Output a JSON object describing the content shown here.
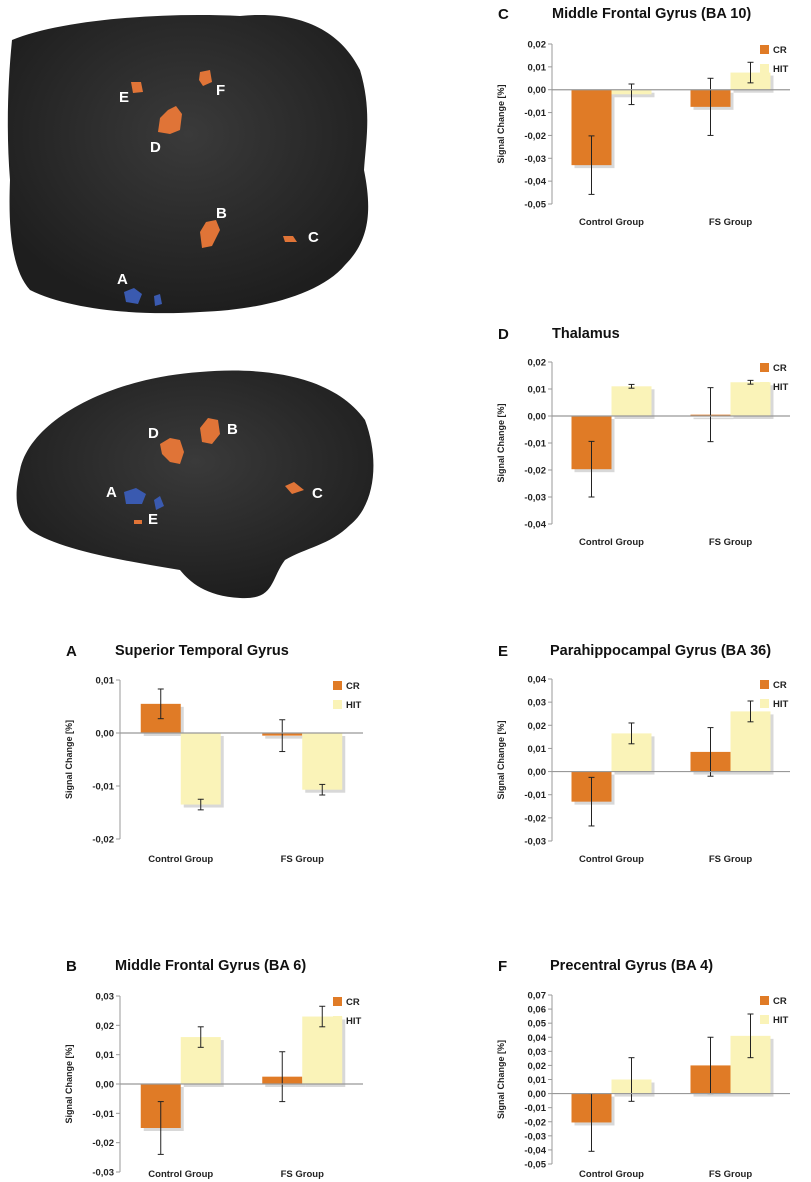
{
  "colors": {
    "cr": "#e07b26",
    "hit": "#faf3b8",
    "brain": "#2e2e2e",
    "active": "#e07437",
    "deactive": "#3a5ab0"
  },
  "brain_labels": {
    "top": [
      "A",
      "B",
      "C",
      "D",
      "E",
      "F"
    ],
    "bottom": [
      "A",
      "B",
      "C",
      "D",
      "E"
    ]
  },
  "chart_data": [
    {
      "panel": "A",
      "type": "bar",
      "title": "Superior Temporal Gyrus",
      "ylabel": "Signal Change [%]",
      "categories": [
        "Control Group",
        "FS Group"
      ],
      "ticks": [
        "0,01",
        "0,00",
        "-0,01",
        "-0,02"
      ],
      "ylim": [
        -0.02,
        0.01
      ],
      "series": [
        {
          "name": "CR",
          "values": [
            0.0055,
            -0.0005
          ],
          "errors": [
            0.0028,
            0.003
          ]
        },
        {
          "name": "HIT",
          "values": [
            -0.0135,
            -0.0107
          ],
          "errors": [
            0.001,
            0.001
          ]
        }
      ]
    },
    {
      "panel": "B",
      "type": "bar",
      "title": "Middle Frontal Gyrus (BA 6)",
      "ylabel": "Signal Change [%]",
      "categories": [
        "Control Group",
        "FS Group"
      ],
      "ticks": [
        "0,03",
        "0,02",
        "0,01",
        "0,00",
        "-0,01",
        "-0,02",
        "-0,03"
      ],
      "ylim": [
        -0.03,
        0.03
      ],
      "series": [
        {
          "name": "CR",
          "values": [
            -0.015,
            0.0025
          ],
          "errors": [
            0.009,
            0.0085
          ]
        },
        {
          "name": "HIT",
          "values": [
            0.016,
            0.023
          ],
          "errors": [
            0.0035,
            0.0035
          ]
        }
      ]
    },
    {
      "panel": "C",
      "type": "bar",
      "title": "Middle Frontal Gyrus (BA 10)",
      "ylabel": "Signal Change [%]",
      "categories": [
        "Control Group",
        "FS Group"
      ],
      "ticks": [
        "0,02",
        "0,01",
        "0,00",
        "-0,01",
        "-0,02",
        "-0,03",
        "-0,04",
        "-0,05"
      ],
      "ylim": [
        -0.05,
        0.02
      ],
      "series": [
        {
          "name": "CR",
          "values": [
            -0.033,
            -0.0075
          ],
          "errors": [
            0.0128,
            0.0125
          ]
        },
        {
          "name": "HIT",
          "values": [
            -0.002,
            0.0075
          ],
          "errors": [
            0.0045,
            0.0045
          ]
        }
      ]
    },
    {
      "panel": "D",
      "type": "bar",
      "title": "Thalamus",
      "ylabel": "Signal Change [%]",
      "categories": [
        "Control Group",
        "FS Group"
      ],
      "ticks": [
        "0,02",
        "0,01",
        "0,00",
        "-0,01",
        "-0,02",
        "-0,03",
        "-0,04"
      ],
      "ylim": [
        -0.04,
        0.02
      ],
      "series": [
        {
          "name": "CR",
          "values": [
            -0.0197,
            0.0005
          ],
          "errors": [
            0.0103,
            0.01
          ]
        },
        {
          "name": "HIT",
          "values": [
            0.011,
            0.0125
          ],
          "errors": [
            0.0007,
            0.0007
          ]
        }
      ]
    },
    {
      "panel": "E",
      "type": "bar",
      "title": "Parahippocampal Gyrus (BA 36)",
      "ylabel": "Signal Change [%]",
      "categories": [
        "Control Group",
        "FS Group"
      ],
      "ticks": [
        "0,04",
        "0,03",
        "0,02",
        "0,01",
        "0,00",
        "-0,01",
        "-0,02",
        "-0,03"
      ],
      "ylim": [
        -0.03,
        0.04
      ],
      "series": [
        {
          "name": "CR",
          "values": [
            -0.013,
            0.0085
          ],
          "errors": [
            0.0105,
            0.0105
          ]
        },
        {
          "name": "HIT",
          "values": [
            0.0165,
            0.026
          ],
          "errors": [
            0.0045,
            0.0045
          ]
        }
      ]
    },
    {
      "panel": "F",
      "type": "bar",
      "title": "Precentral Gyrus (BA 4)",
      "ylabel": "Signal Change [%]",
      "categories": [
        "Control Group",
        "FS Group"
      ],
      "ticks": [
        "0,07",
        "0,06",
        "0,05",
        "0,04",
        "0,03",
        "0,02",
        "0,01",
        "0,00",
        "-0,01",
        "-0,02",
        "-0,03",
        "-0,04",
        "-0,05"
      ],
      "ylim": [
        -0.05,
        0.07
      ],
      "series": [
        {
          "name": "CR",
          "values": [
            -0.0205,
            0.02
          ],
          "errors": [
            0.0205,
            0.02
          ]
        },
        {
          "name": "HIT",
          "values": [
            0.01,
            0.041
          ],
          "errors": [
            0.0155,
            0.0155
          ]
        }
      ]
    }
  ]
}
